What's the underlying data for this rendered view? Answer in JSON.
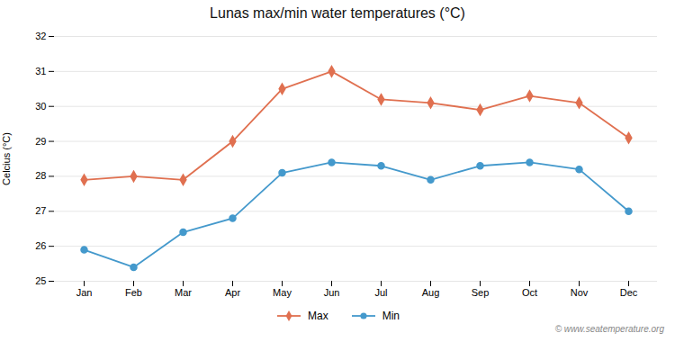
{
  "chart_data": {
    "type": "line",
    "title": "Lunas max/min water temperatures (°C)",
    "ylabel": "Celcius (°C)",
    "categories": [
      "Jan",
      "Feb",
      "Mar",
      "Apr",
      "May",
      "Jun",
      "Jul",
      "Aug",
      "Sep",
      "Oct",
      "Nov",
      "Dec"
    ],
    "series": [
      {
        "name": "Max",
        "color": "#e07050",
        "marker": "diamond",
        "values": [
          27.9,
          28.0,
          27.9,
          29.0,
          30.5,
          31.0,
          30.2,
          30.1,
          29.9,
          30.3,
          30.1,
          29.1
        ]
      },
      {
        "name": "Min",
        "color": "#4499cc",
        "marker": "circle",
        "values": [
          25.9,
          25.4,
          26.4,
          26.8,
          28.1,
          28.4,
          28.3,
          27.9,
          28.3,
          28.4,
          28.2,
          27.0
        ]
      }
    ],
    "ylim": [
      25,
      32
    ],
    "yticks": [
      25,
      26,
      27,
      28,
      29,
      30,
      31,
      32
    ],
    "grid": true,
    "legend": "bottom",
    "annotations": [
      "© www.seatemperature.org"
    ]
  }
}
